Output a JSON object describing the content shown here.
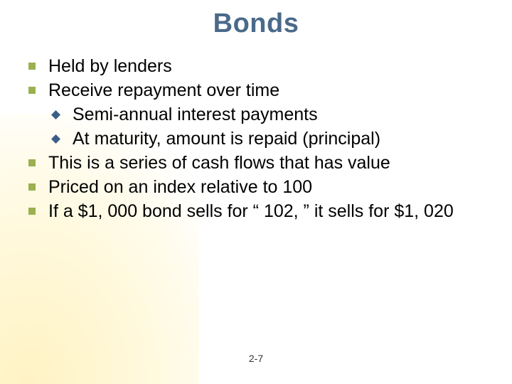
{
  "title": "Bonds",
  "title_color": "#4a6a8a",
  "title_fontsize": 38,
  "title_fontweight": 700,
  "body_fontsize": 25,
  "body_color": "#000000",
  "bullet_lvl1_color": "#9bb04f",
  "bullet_lvl1_shape": "square",
  "bullet_lvl2_color": "#3b5e86",
  "bullet_lvl2_shape": "diamond",
  "background_accent": {
    "type": "radial-gradient",
    "position": "bottom-left",
    "colors": [
      "#fff3c4",
      "#fff7d6",
      "#fffbe8",
      "#ffffff"
    ]
  },
  "bullets": [
    {
      "text": "Held by lenders"
    },
    {
      "text": "Receive repayment over time",
      "sub": [
        {
          "text": "Semi-annual interest payments"
        },
        {
          "text": "At maturity, amount is repaid (principal)"
        }
      ]
    },
    {
      "text": "This is a series of cash flows that has value"
    },
    {
      "text": "Priced on an index relative to 100"
    },
    {
      "text": "If a $1, 000 bond sells for “ 102, ” it sells for $1, 020"
    }
  ],
  "footer": "2-7",
  "footer_fontsize": 14
}
